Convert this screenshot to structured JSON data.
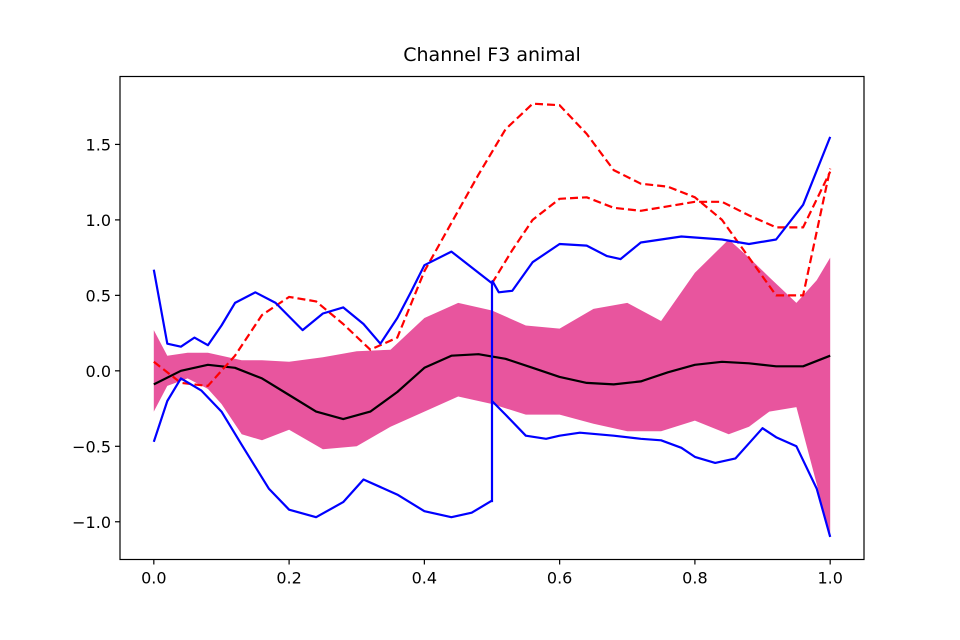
{
  "chart_data": {
    "type": "line",
    "title": "Channel F3 animal",
    "xlabel": "",
    "ylabel": "",
    "xlim": [
      -0.05,
      1.05
    ],
    "ylim": [
      -1.25,
      1.95
    ],
    "x_ticks": [
      0.0,
      0.2,
      0.4,
      0.6,
      0.8,
      1.0
    ],
    "x_tick_labels": [
      "0.0",
      "0.2",
      "0.4",
      "0.6",
      "0.8",
      "1.0"
    ],
    "y_ticks": [
      -1.0,
      -0.5,
      0.0,
      0.5,
      1.0,
      1.5
    ],
    "y_tick_labels": [
      "−1.0",
      "−0.5",
      "0.0",
      "0.5",
      "1.0",
      "1.5"
    ],
    "grid": false,
    "band": {
      "color": "#e8559e",
      "x": [
        0,
        0.02,
        0.05,
        0.08,
        0.1,
        0.13,
        0.16,
        0.2,
        0.25,
        0.3,
        0.35,
        0.4,
        0.45,
        0.5,
        0.55,
        0.6,
        0.65,
        0.7,
        0.75,
        0.8,
        0.85,
        0.88,
        0.91,
        0.95,
        0.98,
        1.0
      ],
      "upper": [
        0.27,
        0.1,
        0.12,
        0.12,
        0.1,
        0.07,
        0.07,
        0.06,
        0.09,
        0.13,
        0.14,
        0.35,
        0.45,
        0.4,
        0.3,
        0.28,
        0.41,
        0.45,
        0.33,
        0.65,
        0.87,
        0.75,
        0.62,
        0.45,
        0.6,
        0.75
      ],
      "lower": [
        -0.27,
        -0.1,
        -0.05,
        -0.12,
        -0.22,
        -0.42,
        -0.46,
        -0.39,
        -0.52,
        -0.5,
        -0.37,
        -0.27,
        -0.17,
        -0.22,
        -0.29,
        -0.29,
        -0.35,
        -0.4,
        -0.4,
        -0.33,
        -0.42,
        -0.37,
        -0.27,
        -0.24,
        -0.75,
        -1.1
      ]
    },
    "series": [
      {
        "color": "#000000",
        "style": "solid",
        "x": [
          0,
          0.04,
          0.08,
          0.12,
          0.16,
          0.2,
          0.24,
          0.28,
          0.32,
          0.36,
          0.4,
          0.44,
          0.48,
          0.52,
          0.56,
          0.6,
          0.64,
          0.68,
          0.72,
          0.76,
          0.8,
          0.84,
          0.88,
          0.92,
          0.96,
          1.0
        ],
        "y": [
          -0.09,
          0.0,
          0.04,
          0.02,
          -0.05,
          -0.16,
          -0.27,
          -0.32,
          -0.27,
          -0.14,
          0.02,
          0.1,
          0.11,
          0.08,
          0.02,
          -0.04,
          -0.08,
          -0.09,
          -0.07,
          -0.01,
          0.04,
          0.06,
          0.05,
          0.03,
          0.03,
          0.1
        ]
      },
      {
        "color": "#ff0000",
        "style": "dashed",
        "x": [
          0,
          0.04,
          0.08,
          0.12,
          0.16,
          0.2,
          0.24,
          0.28,
          0.32,
          0.36,
          0.4,
          0.44,
          0.48,
          0.52,
          0.56,
          0.6,
          0.64,
          0.68,
          0.72,
          0.76,
          0.8,
          0.84,
          0.88,
          0.92,
          0.96,
          1.0
        ],
        "y": [
          0.06,
          -0.08,
          -0.1,
          0.1,
          0.37,
          0.49,
          0.46,
          0.31,
          0.14,
          0.22,
          0.66,
          0.98,
          1.3,
          1.6,
          1.77,
          1.76,
          1.57,
          1.33,
          1.24,
          1.22,
          1.15,
          1.0,
          0.75,
          0.5,
          0.5,
          1.34
        ]
      },
      {
        "color": "#ff0000",
        "style": "dashed",
        "x": [
          0.5,
          0.53,
          0.56,
          0.6,
          0.64,
          0.68,
          0.72,
          0.76,
          0.8,
          0.84,
          0.88,
          0.92,
          0.96,
          1.0
        ],
        "y": [
          0.58,
          0.8,
          1.0,
          1.14,
          1.15,
          1.08,
          1.06,
          1.09,
          1.12,
          1.12,
          1.03,
          0.95,
          0.95,
          1.32
        ]
      },
      {
        "color": "#0000ff",
        "style": "solid",
        "x": [
          0,
          0.02,
          0.04,
          0.06,
          0.08,
          0.1,
          0.12,
          0.15,
          0.18,
          0.22,
          0.25,
          0.28,
          0.31,
          0.335,
          0.36,
          0.38,
          0.4,
          0.44,
          0.48,
          0.5
        ],
        "y": [
          0.67,
          0.18,
          0.16,
          0.22,
          0.17,
          0.3,
          0.45,
          0.52,
          0.45,
          0.27,
          0.38,
          0.42,
          0.31,
          0.18,
          0.35,
          0.52,
          0.7,
          0.79,
          0.65,
          0.58
        ]
      },
      {
        "color": "#0000ff",
        "style": "solid",
        "x": [
          0.5,
          0.51,
          0.53,
          0.56,
          0.6,
          0.64,
          0.67,
          0.69,
          0.72,
          0.78,
          0.84,
          0.88,
          0.92,
          0.96,
          1.0
        ],
        "y": [
          0.6,
          0.52,
          0.53,
          0.72,
          0.84,
          0.83,
          0.76,
          0.74,
          0.85,
          0.89,
          0.87,
          0.84,
          0.87,
          1.1,
          1.55
        ]
      },
      {
        "color": "#0000ff",
        "style": "solid",
        "x": [
          0,
          0.02,
          0.04,
          0.07,
          0.1,
          0.13,
          0.17,
          0.2,
          0.24,
          0.28,
          0.31,
          0.36,
          0.4,
          0.44,
          0.47,
          0.5
        ],
        "y": [
          -0.47,
          -0.2,
          -0.05,
          -0.13,
          -0.27,
          -0.49,
          -0.78,
          -0.92,
          -0.97,
          -0.87,
          -0.72,
          -0.82,
          -0.93,
          -0.97,
          -0.94,
          -0.86
        ]
      },
      {
        "color": "#0000ff",
        "style": "solid",
        "x": [
          0.5,
          0.52,
          0.55,
          0.58,
          0.6,
          0.63,
          0.68,
          0.72,
          0.75,
          0.78,
          0.8,
          0.83,
          0.86,
          0.88,
          0.9,
          0.92,
          0.95,
          0.98,
          1.0
        ],
        "y": [
          -0.2,
          -0.29,
          -0.43,
          -0.45,
          -0.43,
          -0.41,
          -0.43,
          -0.45,
          -0.46,
          -0.51,
          -0.57,
          -0.61,
          -0.58,
          -0.48,
          -0.38,
          -0.44,
          -0.5,
          -0.78,
          -1.1
        ]
      },
      {
        "color": "#0000ff",
        "style": "solid",
        "x": [
          0.5,
          0.5
        ],
        "y": [
          0.58,
          -0.87
        ]
      }
    ]
  }
}
